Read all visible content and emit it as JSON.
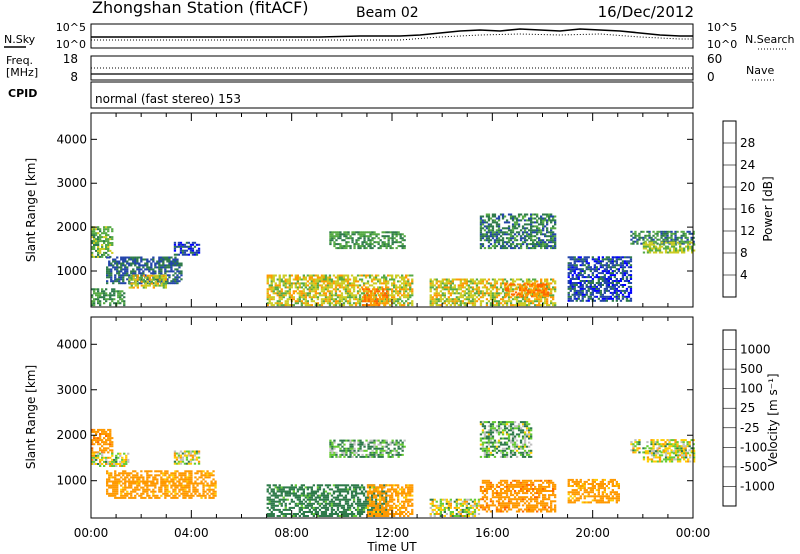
{
  "header": {
    "station": "Zhongshan Station (fitACF)",
    "beam": "Beam 02",
    "date": "16/Dec/2012"
  },
  "noise_panel": {
    "left_label": "N.Sky",
    "right_label": "N.Search",
    "left_ticks": [
      "10^5",
      "10^0"
    ],
    "right_ticks": [
      "10^5",
      "10^0"
    ]
  },
  "freq_panel": {
    "left_label_line1": "Freq.",
    "left_label_line2": "[MHz]",
    "right_label": "Nave",
    "left_ticks": [
      "18",
      "8"
    ],
    "right_ticks": [
      "60",
      "0"
    ]
  },
  "cpid_panel": {
    "label": "CPID",
    "mode_text": "normal (fast stereo) 153"
  },
  "time_axis": {
    "label": "Time UT",
    "ticks": [
      "00:00",
      "04:00",
      "08:00",
      "12:00",
      "16:00",
      "20:00",
      "00:00"
    ]
  },
  "colors": {
    "power": [
      "#0000ff",
      "#2244aa",
      "#2e7b4a",
      "#55aa44",
      "#cccc22",
      "#ff9900",
      "#ff6600",
      "#ee3300",
      "#ff0000"
    ],
    "velocity": [
      "#ff0000",
      "#ff6600",
      "#ff9900",
      "#ffcc00",
      "#c0c0c0",
      "#c0c0c0",
      "#66cc33",
      "#2e7b4a",
      "#2244aa",
      "#1111bb"
    ]
  },
  "chart_data": [
    {
      "type": "heatmap",
      "name": "Power",
      "ylabel": "Slant Range [km]",
      "xlabel": "",
      "yticks": [
        1000,
        2000,
        3000,
        4000
      ],
      "ylim": [
        180,
        4600
      ],
      "xlim": [
        0,
        24
      ],
      "colorbar_label": "Power [dB]",
      "colorbar_ticks": [
        4,
        8,
        12,
        16,
        20,
        24,
        28
      ],
      "colorbar_range": [
        0,
        32
      ],
      "regions": [
        {
          "t0": 0.0,
          "t1": 0.8,
          "r0": 1300,
          "r1": 2000,
          "v": 14
        },
        {
          "t0": 0.6,
          "t1": 3.6,
          "r0": 700,
          "r1": 1300,
          "v": 8
        },
        {
          "t0": 1.5,
          "t1": 3.0,
          "r0": 600,
          "r1": 900,
          "v": 18
        },
        {
          "t0": 0.0,
          "t1": 1.3,
          "r0": 200,
          "r1": 600,
          "v": 12
        },
        {
          "t0": 3.3,
          "t1": 4.3,
          "r0": 1350,
          "r1": 1650,
          "v": 6
        },
        {
          "t0": 7.0,
          "t1": 12.8,
          "r0": 200,
          "r1": 900,
          "v": 18
        },
        {
          "t0": 10.8,
          "t1": 11.8,
          "r0": 200,
          "r1": 600,
          "v": 24
        },
        {
          "t0": 9.5,
          "t1": 12.5,
          "r0": 1500,
          "r1": 1900,
          "v": 12
        },
        {
          "t0": 13.5,
          "t1": 18.5,
          "r0": 200,
          "r1": 800,
          "v": 18
        },
        {
          "t0": 16.5,
          "t1": 18.2,
          "r0": 400,
          "r1": 700,
          "v": 24
        },
        {
          "t0": 15.5,
          "t1": 18.5,
          "r0": 1500,
          "r1": 2300,
          "v": 10
        },
        {
          "t0": 19.0,
          "t1": 21.5,
          "r0": 300,
          "r1": 1300,
          "v": 6
        },
        {
          "t0": 21.5,
          "t1": 24.0,
          "r0": 1600,
          "r1": 1900,
          "v": 10
        },
        {
          "t0": 22.0,
          "t1": 24.0,
          "r0": 1400,
          "r1": 1650,
          "v": 16
        }
      ]
    },
    {
      "type": "heatmap",
      "name": "Velocity",
      "ylabel": "Slant Range [km]",
      "xlabel": "Time UT",
      "yticks": [
        1000,
        2000,
        3000,
        4000
      ],
      "ylim": [
        180,
        4600
      ],
      "xlim": [
        0,
        24
      ],
      "colorbar_label": "Velocity [m s⁻¹]",
      "colorbar_ticks": [
        "1000",
        "500",
        "100",
        "25",
        "-25",
        "-100",
        "-500",
        "-1000"
      ],
      "regions": [
        {
          "t0": 0.0,
          "t1": 0.8,
          "r0": 1600,
          "r1": 2100,
          "v": -400
        },
        {
          "t0": 0.0,
          "t1": 1.5,
          "r0": 1300,
          "r1": 1600,
          "v": 0
        },
        {
          "t0": 0.6,
          "t1": 5.0,
          "r0": 600,
          "r1": 1200,
          "v": -200
        },
        {
          "t0": 3.3,
          "t1": 4.3,
          "r0": 1350,
          "r1": 1650,
          "v": 0
        },
        {
          "t0": 7.0,
          "t1": 11.8,
          "r0": 200,
          "r1": 900,
          "v": 200
        },
        {
          "t0": 11.0,
          "t1": 12.8,
          "r0": 200,
          "r1": 900,
          "v": -200
        },
        {
          "t0": 9.5,
          "t1": 12.5,
          "r0": 1500,
          "r1": 1900,
          "v": 100
        },
        {
          "t0": 13.5,
          "t1": 15.5,
          "r0": 200,
          "r1": 600,
          "v": 0
        },
        {
          "t0": 15.5,
          "t1": 18.5,
          "r0": 300,
          "r1": 1000,
          "v": -400
        },
        {
          "t0": 15.5,
          "t1": 17.5,
          "r0": 1500,
          "r1": 2300,
          "v": 80
        },
        {
          "t0": 19.0,
          "t1": 21.0,
          "r0": 500,
          "r1": 1000,
          "v": -200
        },
        {
          "t0": 21.5,
          "t1": 24.0,
          "r0": 1600,
          "r1": 1900,
          "v": 0
        },
        {
          "t0": 22.0,
          "t1": 24.0,
          "r0": 1400,
          "r1": 1650,
          "v": 0
        }
      ]
    }
  ]
}
